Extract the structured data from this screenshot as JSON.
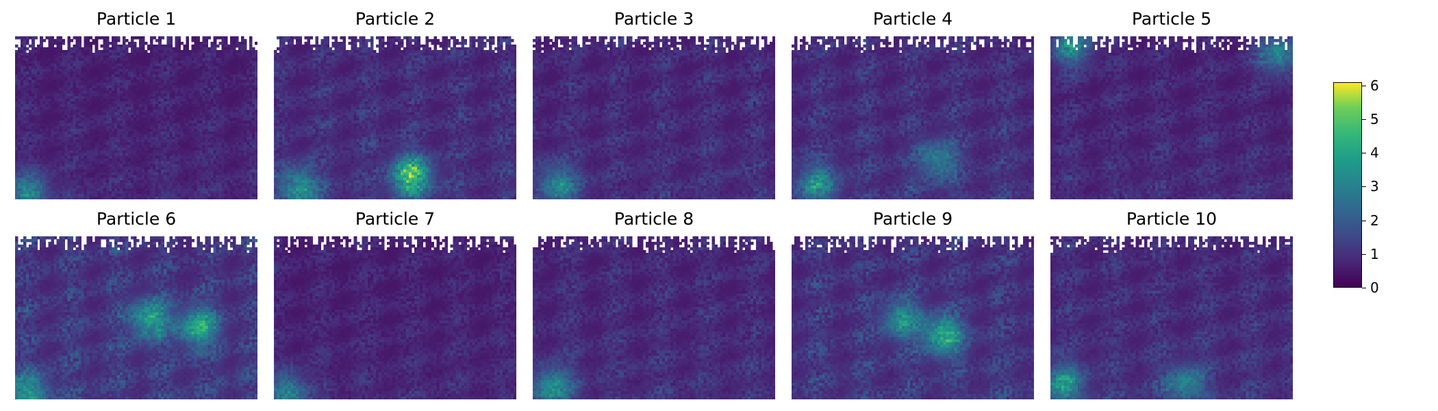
{
  "chart_data": {
    "type": "heatmap",
    "layout": "2 rows x 5 columns",
    "panels": [
      {
        "title": "Particle 1",
        "intensity": 0.18,
        "hotspots": [
          {
            "x": 0.05,
            "y": 0.95,
            "v": 3.0
          }
        ]
      },
      {
        "title": "Particle 2",
        "intensity": 0.24,
        "hotspots": [
          {
            "x": 0.56,
            "y": 0.85,
            "v": 5.0
          },
          {
            "x": 0.1,
            "y": 0.92,
            "v": 3.2
          }
        ]
      },
      {
        "title": "Particle 3",
        "intensity": 0.22,
        "hotspots": [
          {
            "x": 0.1,
            "y": 0.9,
            "v": 2.8
          }
        ]
      },
      {
        "title": "Particle 4",
        "intensity": 0.25,
        "hotspots": [
          {
            "x": 0.1,
            "y": 0.9,
            "v": 3.0
          },
          {
            "x": 0.6,
            "y": 0.75,
            "v": 2.5
          }
        ]
      },
      {
        "title": "Particle 5",
        "intensity": 0.2,
        "hotspots": [
          {
            "x": 0.08,
            "y": 0.05,
            "v": 3.2
          },
          {
            "x": 0.93,
            "y": 0.1,
            "v": 3.0
          }
        ]
      },
      {
        "title": "Particle 6",
        "intensity": 0.3,
        "hotspots": [
          {
            "x": 0.55,
            "y": 0.5,
            "v": 3.6
          },
          {
            "x": 0.75,
            "y": 0.55,
            "v": 3.8
          },
          {
            "x": 0.05,
            "y": 0.95,
            "v": 3.0
          }
        ]
      },
      {
        "title": "Particle 7",
        "intensity": 0.18,
        "hotspots": [
          {
            "x": 0.05,
            "y": 0.95,
            "v": 2.8
          }
        ]
      },
      {
        "title": "Particle 8",
        "intensity": 0.22,
        "hotspots": [
          {
            "x": 0.08,
            "y": 0.92,
            "v": 3.2
          }
        ]
      },
      {
        "title": "Particle 9",
        "intensity": 0.28,
        "hotspots": [
          {
            "x": 0.62,
            "y": 0.6,
            "v": 4.0
          },
          {
            "x": 0.45,
            "y": 0.5,
            "v": 3.0
          }
        ]
      },
      {
        "title": "Particle 10",
        "intensity": 0.24,
        "hotspots": [
          {
            "x": 0.05,
            "y": 0.9,
            "v": 3.2
          },
          {
            "x": 0.55,
            "y": 0.9,
            "v": 2.6
          }
        ]
      }
    ],
    "colorbar": {
      "colormap": "viridis",
      "range": [
        0,
        6.1
      ],
      "ticks": [
        "0",
        "1",
        "2",
        "3",
        "4",
        "5",
        "6"
      ]
    },
    "masked_region": "white gaps along top edge of each panel",
    "axes": "off"
  }
}
